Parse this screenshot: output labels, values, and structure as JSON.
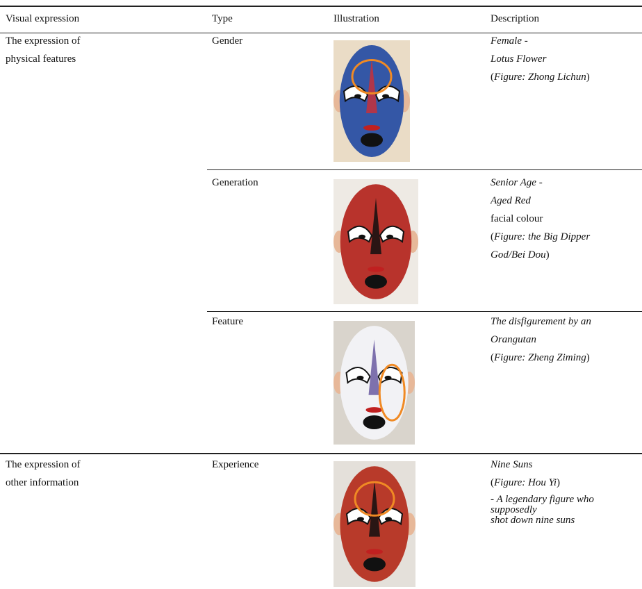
{
  "header": [
    "Visual expression",
    "Type",
    "Illustration",
    "Description"
  ],
  "rows": [
    {
      "expression": [
        "The expression of",
        "physical features"
      ],
      "type": "Gender",
      "description": [
        [
          {
            "text": "Female -",
            "italic": true
          }
        ],
        [
          {
            "text": "Lotus Flower",
            "italic": true
          }
        ],
        [
          {
            "text": "(",
            "italic": false
          },
          {
            "text": "Figure: Zhong Lichun",
            "italic": true
          },
          {
            "text": ")",
            "italic": false
          }
        ]
      ]
    },
    {
      "type": "Generation",
      "description": [
        [
          {
            "text": "Senior Age -",
            "italic": true
          }
        ],
        [
          {
            "text": "Aged Red",
            "italic": true
          }
        ],
        [
          {
            "text": "facial colour",
            "italic": false
          }
        ],
        [
          {
            "text": "(",
            "italic": false
          },
          {
            "text": "Figure: the Big Dipper",
            "italic": true
          }
        ],
        [
          {
            "text": "God/Bei Dou",
            "italic": true
          },
          {
            "text": ")",
            "italic": false
          }
        ]
      ]
    },
    {
      "type": "Feature",
      "description": [
        [
          {
            "text": "The disfigurement by an",
            "italic": true
          }
        ],
        [
          {
            "text": "Orangutan",
            "italic": true
          }
        ],
        [
          {
            "text": "(",
            "italic": false
          },
          {
            "text": "Figure: Zheng Ziming",
            "italic": true
          },
          {
            "text": ")",
            "italic": false
          }
        ]
      ]
    },
    {
      "expression": [
        "The expression of",
        "other information"
      ],
      "type": "Experience",
      "description": [
        [
          {
            "text": "Nine Suns",
            "italic": true
          }
        ],
        [
          {
            "text": "(",
            "italic": false
          },
          {
            "text": "Figure: Hou Yi",
            "italic": true
          },
          {
            "text": ")",
            "italic": false
          }
        ]
      ],
      "note": [
        "- A legendary figure who",
        "supposedly",
        "shot down nine suns"
      ]
    }
  ]
}
